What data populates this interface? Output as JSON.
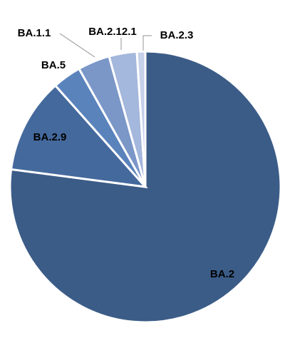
{
  "chart_data": {
    "type": "pie",
    "title": "",
    "start_angle_deg": 0,
    "direction": "clockwise",
    "slices": [
      {
        "label": "BA.2",
        "value": 76.6,
        "color": "#3b5c87"
      },
      {
        "label": "BA.2.9",
        "value": 11.3,
        "color": "#44699c"
      },
      {
        "label": "BA.5",
        "value": 3.4,
        "color": "#5a83bc"
      },
      {
        "label": "BA.1.1",
        "value": 3.8,
        "color": "#7b97c8"
      },
      {
        "label": "BA.2.12.1",
        "value": 3.3,
        "color": "#a4b7dc"
      },
      {
        "label": "BA.2.3",
        "value": 1.0,
        "color": "#c6d1ea"
      }
    ],
    "legend": "none"
  }
}
